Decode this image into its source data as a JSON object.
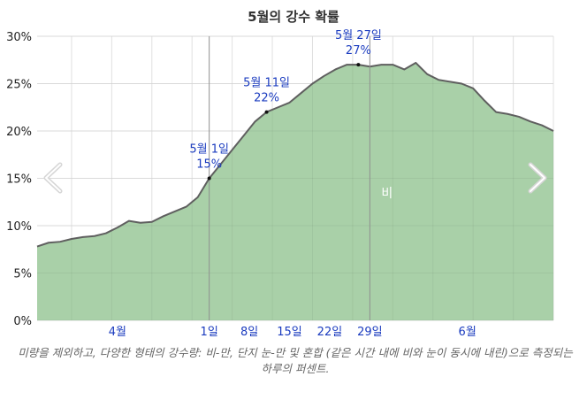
{
  "title": "5월의 강수 확률",
  "caption": "미량을 제외하고, 다양한 형태의 강수량: 비-만, 단지 눈-만 및 혼합 (같은 시간 내에 비와 눈이 동시에 내린)으로 측정되는 하루의 퍼센트.",
  "nav": {
    "prev_icon": "chevron-left-icon",
    "next_icon": "chevron-right-icon"
  },
  "colors": {
    "area_fill": "#a9d0a8",
    "line": "#5f5f5f",
    "annotation": "#1a3bbf",
    "tick_blue": "#1a3bbf",
    "series_label": "#ffffff"
  },
  "chart_data": {
    "type": "area",
    "title": "5월의 강수 확률",
    "xlabel": "",
    "ylabel": "",
    "ylim": [
      0,
      30
    ],
    "ytick_labels": [
      "0%",
      "5%",
      "10%",
      "15%",
      "20%",
      "25%",
      "30%"
    ],
    "grid": true,
    "x_domain": [
      "2025-04-01",
      "2025-06-30"
    ],
    "x_ticks": [
      {
        "date": "2025-04-15",
        "label": "4월"
      },
      {
        "date": "2025-05-01",
        "label": "1일"
      },
      {
        "date": "2025-05-08",
        "label": "8일"
      },
      {
        "date": "2025-05-15",
        "label": "15일"
      },
      {
        "date": "2025-05-22",
        "label": "22일"
      },
      {
        "date": "2025-05-29",
        "label": "29일"
      },
      {
        "date": "2025-06-15",
        "label": "6월"
      }
    ],
    "series": [
      {
        "name": "비",
        "points": [
          [
            "2025-04-01",
            7.8
          ],
          [
            "2025-04-03",
            8.2
          ],
          [
            "2025-04-05",
            8.3
          ],
          [
            "2025-04-07",
            8.6
          ],
          [
            "2025-04-09",
            8.8
          ],
          [
            "2025-04-11",
            8.9
          ],
          [
            "2025-04-13",
            9.2
          ],
          [
            "2025-04-15",
            9.8
          ],
          [
            "2025-04-17",
            10.5
          ],
          [
            "2025-04-19",
            10.3
          ],
          [
            "2025-04-21",
            10.4
          ],
          [
            "2025-04-23",
            11.0
          ],
          [
            "2025-04-25",
            11.5
          ],
          [
            "2025-04-27",
            12.0
          ],
          [
            "2025-04-29",
            13.0
          ],
          [
            "2025-05-01",
            15.0
          ],
          [
            "2025-05-03",
            16.5
          ],
          [
            "2025-05-05",
            18.0
          ],
          [
            "2025-05-07",
            19.5
          ],
          [
            "2025-05-09",
            21.0
          ],
          [
            "2025-05-11",
            22.0
          ],
          [
            "2025-05-13",
            22.5
          ],
          [
            "2025-05-15",
            23.0
          ],
          [
            "2025-05-17",
            24.0
          ],
          [
            "2025-05-19",
            25.0
          ],
          [
            "2025-05-21",
            25.8
          ],
          [
            "2025-05-23",
            26.5
          ],
          [
            "2025-05-25",
            27.0
          ],
          [
            "2025-05-27",
            27.0
          ],
          [
            "2025-05-29",
            26.8
          ],
          [
            "2025-05-31",
            27.0
          ],
          [
            "2025-06-02",
            27.0
          ],
          [
            "2025-06-04",
            26.5
          ],
          [
            "2025-06-06",
            27.2
          ],
          [
            "2025-06-08",
            26.0
          ],
          [
            "2025-06-10",
            25.4
          ],
          [
            "2025-06-12",
            25.2
          ],
          [
            "2025-06-14",
            25.0
          ],
          [
            "2025-06-16",
            24.5
          ],
          [
            "2025-06-18",
            23.2
          ],
          [
            "2025-06-20",
            22.0
          ],
          [
            "2025-06-22",
            21.8
          ],
          [
            "2025-06-24",
            21.5
          ],
          [
            "2025-06-26",
            21.0
          ],
          [
            "2025-06-28",
            20.6
          ],
          [
            "2025-06-30",
            20.0
          ]
        ]
      }
    ],
    "series_label": "비",
    "highlight_lines": [
      "2025-05-01",
      "2025-05-29"
    ],
    "annotations": [
      {
        "date": "2025-05-01",
        "value": 15,
        "line1": "5월 1일",
        "line2": "15%"
      },
      {
        "date": "2025-05-11",
        "value": 22,
        "line1": "5월 11일",
        "line2": "22%"
      },
      {
        "date": "2025-05-27",
        "value": 27,
        "line1": "5월 27일",
        "line2": "27%"
      }
    ]
  }
}
